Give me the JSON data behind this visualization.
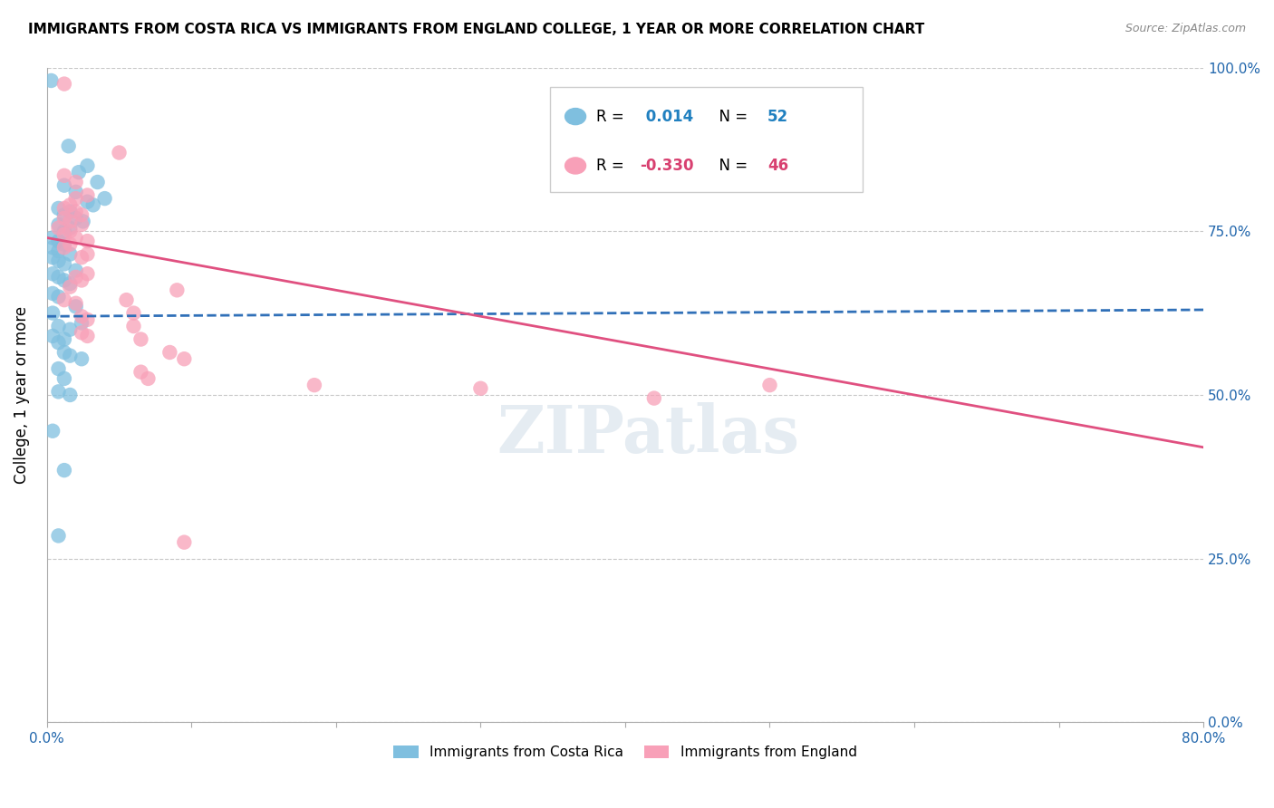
{
  "title": "IMMIGRANTS FROM COSTA RICA VS IMMIGRANTS FROM ENGLAND COLLEGE, 1 YEAR OR MORE CORRELATION CHART",
  "source": "Source: ZipAtlas.com",
  "ylabel": "College, 1 year or more",
  "watermark": "ZIPatlas",
  "r_blue": 0.014,
  "n_blue": 52,
  "r_pink": -0.33,
  "n_pink": 46,
  "blue_color": "#7fbfdf",
  "pink_color": "#f8a0b8",
  "blue_line_color": "#3070b8",
  "pink_line_color": "#e05080",
  "legend_r_blue_color": "#2080c0",
  "legend_n_blue_color": "#2080c0",
  "legend_r_pink_color": "#d84070",
  "legend_n_pink_color": "#d84070",
  "blue_scatter": [
    [
      0.3,
      98.0
    ],
    [
      1.5,
      88.0
    ],
    [
      2.8,
      85.0
    ],
    [
      2.2,
      84.0
    ],
    [
      3.5,
      82.5
    ],
    [
      1.2,
      82.0
    ],
    [
      2.0,
      81.0
    ],
    [
      4.0,
      80.0
    ],
    [
      2.8,
      79.5
    ],
    [
      3.2,
      79.0
    ],
    [
      0.8,
      78.5
    ],
    [
      1.6,
      78.0
    ],
    [
      1.2,
      77.5
    ],
    [
      2.0,
      77.0
    ],
    [
      2.5,
      76.5
    ],
    [
      0.8,
      76.0
    ],
    [
      1.6,
      75.5
    ],
    [
      1.2,
      75.0
    ],
    [
      0.4,
      74.0
    ],
    [
      0.8,
      73.5
    ],
    [
      1.2,
      73.0
    ],
    [
      0.4,
      72.5
    ],
    [
      0.8,
      72.0
    ],
    [
      1.6,
      71.5
    ],
    [
      0.4,
      71.0
    ],
    [
      0.8,
      70.5
    ],
    [
      1.2,
      70.0
    ],
    [
      2.0,
      69.0
    ],
    [
      0.4,
      68.5
    ],
    [
      0.8,
      68.0
    ],
    [
      1.2,
      67.5
    ],
    [
      1.6,
      67.0
    ],
    [
      0.4,
      65.5
    ],
    [
      0.8,
      65.0
    ],
    [
      2.0,
      63.5
    ],
    [
      0.4,
      62.5
    ],
    [
      2.4,
      61.0
    ],
    [
      0.8,
      60.5
    ],
    [
      1.6,
      60.0
    ],
    [
      0.4,
      59.0
    ],
    [
      1.2,
      58.5
    ],
    [
      0.8,
      58.0
    ],
    [
      1.2,
      56.5
    ],
    [
      1.6,
      56.0
    ],
    [
      2.4,
      55.5
    ],
    [
      0.8,
      54.0
    ],
    [
      1.2,
      52.5
    ],
    [
      0.8,
      50.5
    ],
    [
      1.6,
      50.0
    ],
    [
      0.4,
      44.5
    ],
    [
      1.2,
      38.5
    ],
    [
      0.8,
      28.5
    ]
  ],
  "pink_scatter": [
    [
      1.2,
      97.5
    ],
    [
      1.2,
      83.5
    ],
    [
      2.0,
      82.5
    ],
    [
      2.8,
      80.5
    ],
    [
      2.0,
      80.0
    ],
    [
      1.6,
      79.0
    ],
    [
      1.2,
      78.5
    ],
    [
      2.0,
      78.0
    ],
    [
      2.4,
      77.5
    ],
    [
      1.2,
      77.0
    ],
    [
      1.6,
      76.5
    ],
    [
      2.4,
      76.0
    ],
    [
      0.8,
      75.5
    ],
    [
      1.6,
      75.0
    ],
    [
      1.2,
      74.5
    ],
    [
      5.0,
      87.0
    ],
    [
      2.0,
      74.0
    ],
    [
      2.8,
      73.5
    ],
    [
      1.6,
      73.0
    ],
    [
      1.2,
      72.5
    ],
    [
      2.8,
      71.5
    ],
    [
      2.4,
      71.0
    ],
    [
      2.8,
      68.5
    ],
    [
      2.0,
      68.0
    ],
    [
      2.4,
      67.5
    ],
    [
      1.6,
      66.5
    ],
    [
      1.2,
      64.5
    ],
    [
      2.0,
      64.0
    ],
    [
      2.4,
      62.0
    ],
    [
      2.8,
      61.5
    ],
    [
      2.4,
      59.5
    ],
    [
      2.8,
      59.0
    ],
    [
      9.0,
      66.0
    ],
    [
      18.5,
      51.5
    ],
    [
      30.0,
      51.0
    ],
    [
      50.0,
      51.5
    ],
    [
      42.0,
      49.5
    ],
    [
      5.5,
      64.5
    ],
    [
      6.0,
      62.5
    ],
    [
      6.0,
      60.5
    ],
    [
      6.5,
      58.5
    ],
    [
      8.5,
      56.5
    ],
    [
      9.5,
      55.5
    ],
    [
      6.5,
      53.5
    ],
    [
      7.0,
      52.5
    ],
    [
      9.5,
      27.5
    ]
  ],
  "xmin": 0.0,
  "xmax": 80.0,
  "ymin": 0.0,
  "ymax": 100.0,
  "grid_color": "#c8c8c8",
  "ytick_vals": [
    0,
    25,
    50,
    75,
    100
  ],
  "xtick_vals": [
    0,
    10,
    20,
    30,
    40,
    50,
    60,
    70,
    80
  ],
  "blue_trend_x": [
    0,
    80
  ],
  "blue_trend_y": [
    62.0,
    63.0
  ],
  "pink_trend_x": [
    0,
    80
  ],
  "pink_trend_y": [
    74.0,
    42.0
  ]
}
